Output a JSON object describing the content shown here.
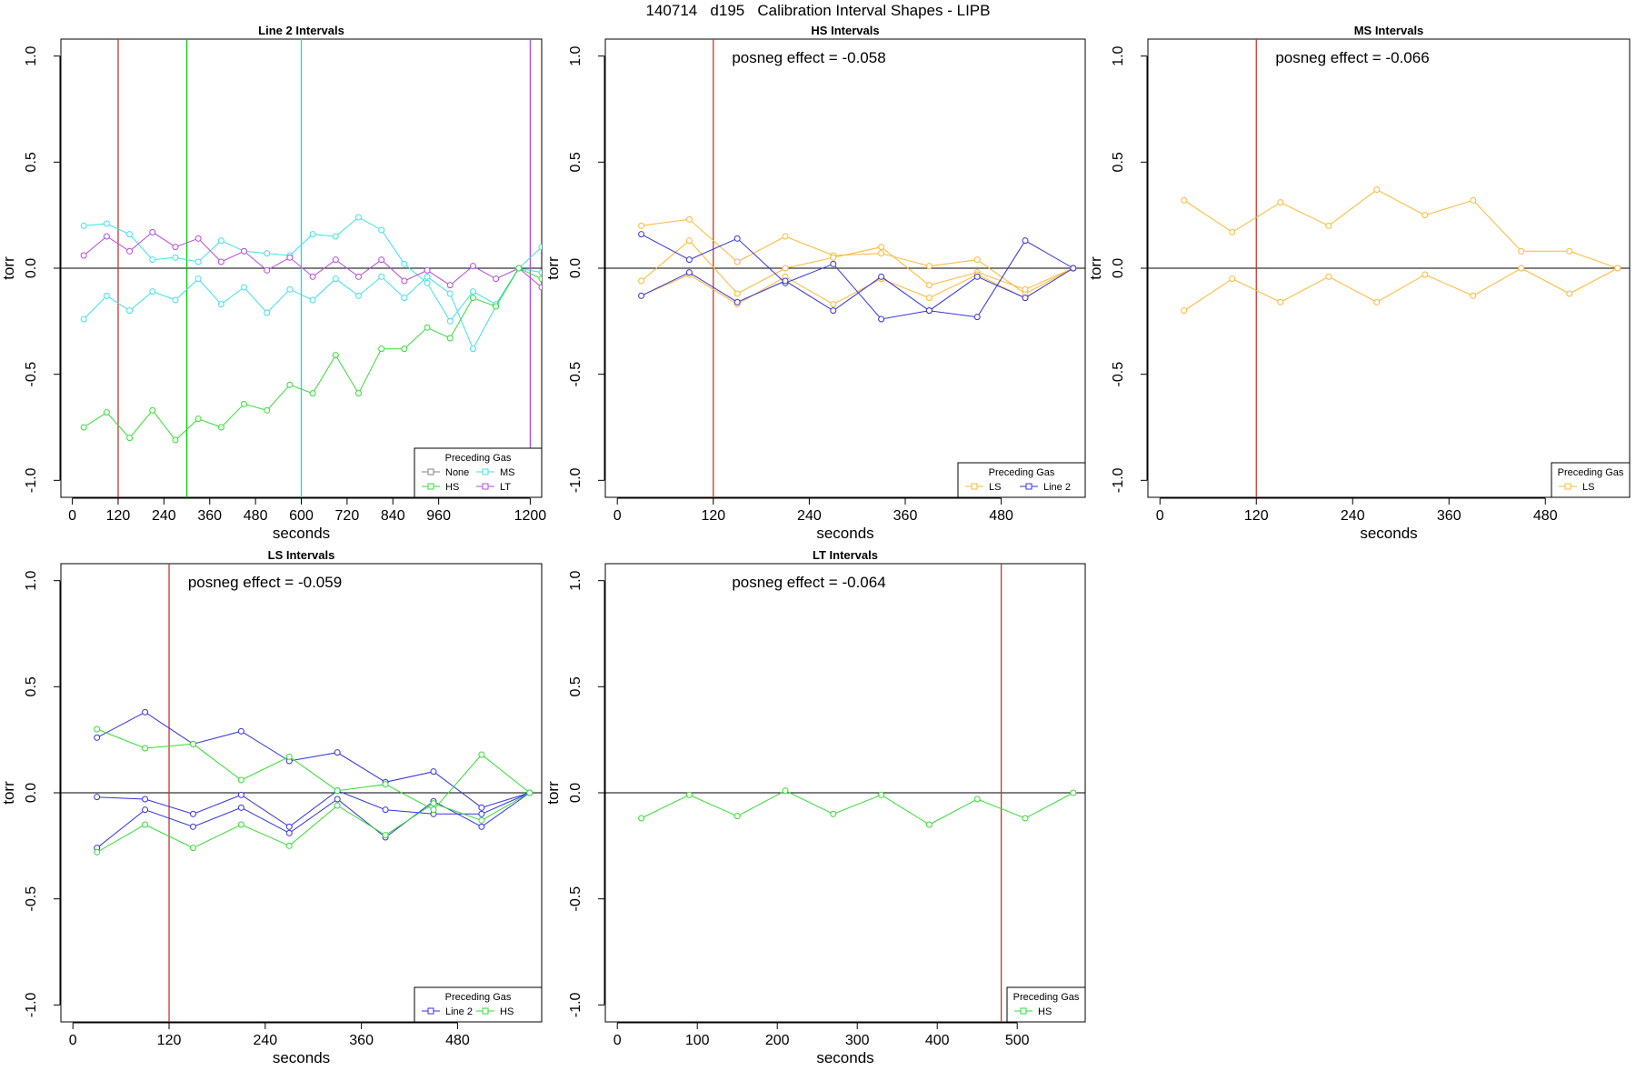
{
  "main_title": "140714   d195   Calibration Interval Shapes - LIPB",
  "chart_data": [
    {
      "type": "line",
      "title": "Line 2 Intervals",
      "annotation": "",
      "xlabel": "seconds",
      "ylabel": "torr",
      "xlim": [
        -30,
        1230
      ],
      "ylim": [
        -1.08,
        1.08
      ],
      "x_ticks": [
        0,
        120,
        240,
        360,
        480,
        600,
        720,
        840,
        960,
        1200
      ],
      "y_ticks": [
        -1.0,
        -0.5,
        0.0,
        0.5,
        1.0
      ],
      "vlines": [
        {
          "x": 120,
          "color": "#c0392b"
        },
        {
          "x": 300,
          "color": "#00cc00"
        },
        {
          "x": 600,
          "color": "#00e5e5"
        },
        {
          "x": 1200,
          "color": "#b44bdc"
        }
      ],
      "legend": {
        "title": "Preceding Gas",
        "position": "bottom-right",
        "columns": 2,
        "entries": [
          {
            "label": "None",
            "color": "#808080"
          },
          {
            "label": "MS",
            "color": "#40e0e8"
          },
          {
            "label": "HS",
            "color": "#33dd33"
          },
          {
            "label": "LT",
            "color": "#b44bdc"
          }
        ]
      },
      "series": [
        {
          "name": "MS",
          "color": "#40e0e8",
          "x": [
            30,
            90,
            150,
            210,
            270,
            330,
            390,
            450,
            510,
            570,
            630,
            690,
            750,
            810,
            870,
            930,
            990,
            1050,
            1110,
            1170,
            1230
          ],
          "y": [
            0.2,
            0.21,
            0.16,
            0.04,
            0.05,
            0.03,
            0.13,
            0.08,
            0.07,
            0.06,
            0.16,
            0.15,
            0.24,
            0.18,
            0.02,
            -0.07,
            -0.25,
            -0.11,
            -0.17,
            0.0,
            0.1
          ]
        },
        {
          "name": "MS",
          "color": "#40e0e8",
          "x": [
            30,
            90,
            150,
            210,
            270,
            330,
            390,
            450,
            510,
            570,
            630,
            690,
            750,
            810,
            870,
            930,
            990,
            1050,
            1110,
            1170,
            1230
          ],
          "y": [
            -0.24,
            -0.13,
            -0.2,
            -0.11,
            -0.15,
            -0.05,
            -0.17,
            -0.09,
            -0.21,
            -0.1,
            -0.15,
            -0.05,
            -0.13,
            -0.04,
            -0.14,
            -0.04,
            -0.12,
            -0.38,
            -0.18,
            0.0,
            -0.02
          ]
        },
        {
          "name": "LT",
          "color": "#b44bdc",
          "x": [
            30,
            90,
            150,
            210,
            270,
            330,
            390,
            450,
            510,
            570,
            630,
            690,
            750,
            810,
            870,
            930,
            990,
            1050,
            1110,
            1170,
            1230
          ],
          "y": [
            0.06,
            0.15,
            0.08,
            0.17,
            0.1,
            0.14,
            0.03,
            0.08,
            -0.01,
            0.05,
            -0.04,
            0.04,
            -0.04,
            0.04,
            -0.06,
            -0.01,
            -0.08,
            0.01,
            -0.05,
            0.0,
            -0.09
          ]
        },
        {
          "name": "HS",
          "color": "#33dd33",
          "x": [
            30,
            90,
            150,
            210,
            270,
            330,
            390,
            450,
            510,
            570,
            630,
            690,
            750,
            810,
            870,
            930,
            990,
            1050,
            1110,
            1170,
            1230
          ],
          "y": [
            -0.75,
            -0.68,
            -0.8,
            -0.67,
            -0.81,
            -0.71,
            -0.75,
            -0.64,
            -0.67,
            -0.55,
            -0.59,
            -0.41,
            -0.59,
            -0.38,
            -0.38,
            -0.28,
            -0.33,
            -0.14,
            -0.18,
            0.0,
            -0.05
          ]
        }
      ]
    },
    {
      "type": "line",
      "title": "HS Intervals",
      "annotation": "posneg effect = -0.058",
      "xlabel": "seconds",
      "ylabel": "torr",
      "xlim": [
        -15,
        585
      ],
      "ylim": [
        -1.08,
        1.08
      ],
      "x_ticks": [
        0,
        120,
        240,
        360,
        480
      ],
      "y_ticks": [
        -1.0,
        -0.5,
        0.0,
        0.5,
        1.0
      ],
      "vlines": [
        {
          "x": 120,
          "color": "#c0392b"
        }
      ],
      "legend": {
        "title": "Preceding Gas",
        "position": "bottom-right",
        "columns": 2,
        "entries": [
          {
            "label": "LS",
            "color": "#ffb733"
          },
          {
            "label": "Line 2",
            "color": "#3333dd"
          }
        ]
      },
      "series": [
        {
          "name": "LS",
          "color": "#ffb733",
          "x": [
            30,
            90,
            150,
            210,
            270,
            330,
            390,
            450,
            510,
            570
          ],
          "y": [
            0.2,
            0.23,
            0.03,
            0.15,
            0.06,
            0.07,
            0.01,
            0.04,
            -0.12,
            0.0
          ]
        },
        {
          "name": "LS",
          "color": "#ffb733",
          "x": [
            30,
            90,
            150,
            210,
            270,
            330,
            390,
            450,
            510,
            570
          ],
          "y": [
            -0.06,
            0.13,
            -0.12,
            0.0,
            0.05,
            0.1,
            -0.08,
            -0.02,
            -0.1,
            0.0
          ]
        },
        {
          "name": "LS",
          "color": "#ffb733",
          "x": [
            30,
            90,
            150,
            210,
            270,
            330,
            390,
            450,
            510,
            570
          ],
          "y": [
            -0.13,
            -0.03,
            -0.17,
            -0.04,
            -0.17,
            -0.05,
            -0.14,
            -0.03,
            -0.14,
            0.0
          ]
        },
        {
          "name": "Line 2",
          "color": "#3333dd",
          "x": [
            30,
            90,
            150,
            210,
            270,
            330,
            390,
            450,
            510,
            570
          ],
          "y": [
            0.16,
            0.04,
            0.14,
            -0.07,
            0.02,
            -0.24,
            -0.2,
            -0.23,
            0.13,
            0.0
          ]
        },
        {
          "name": "Line 2",
          "color": "#3333dd",
          "x": [
            30,
            90,
            150,
            210,
            270,
            330,
            390,
            450,
            510,
            570
          ],
          "y": [
            -0.13,
            -0.02,
            -0.16,
            -0.06,
            -0.2,
            -0.04,
            -0.2,
            -0.04,
            -0.14,
            0.0
          ]
        }
      ]
    },
    {
      "type": "line",
      "title": "MS Intervals",
      "annotation": "posneg effect = -0.066",
      "xlabel": "seconds",
      "ylabel": "torr",
      "xlim": [
        -15,
        585
      ],
      "ylim": [
        -1.08,
        1.08
      ],
      "x_ticks": [
        0,
        120,
        240,
        360,
        480
      ],
      "y_ticks": [
        -1.0,
        -0.5,
        0.0,
        0.5,
        1.0
      ],
      "vlines": [
        {
          "x": 120,
          "color": "#c0392b"
        }
      ],
      "legend": {
        "title": "Preceding Gas",
        "position": "bottom-right",
        "columns": 1,
        "entries": [
          {
            "label": "LS",
            "color": "#ffb733"
          }
        ]
      },
      "series": [
        {
          "name": "LS",
          "color": "#ffb733",
          "x": [
            30,
            90,
            150,
            210,
            270,
            330,
            390,
            450,
            510,
            570
          ],
          "y": [
            0.32,
            0.17,
            0.31,
            0.2,
            0.37,
            0.25,
            0.32,
            0.08,
            0.08,
            0.0
          ]
        },
        {
          "name": "LS",
          "color": "#ffb733",
          "x": [
            30,
            90,
            150,
            210,
            270,
            330,
            390,
            450,
            510,
            570
          ],
          "y": [
            -0.2,
            -0.05,
            -0.16,
            -0.04,
            -0.16,
            -0.03,
            -0.13,
            0.0,
            -0.12,
            0.0
          ]
        }
      ]
    },
    {
      "type": "line",
      "title": "LS Intervals",
      "annotation": "posneg effect = -0.059",
      "xlabel": "seconds",
      "ylabel": "torr",
      "xlim": [
        -15,
        585
      ],
      "ylim": [
        -1.08,
        1.08
      ],
      "x_ticks": [
        0,
        120,
        240,
        360,
        480
      ],
      "y_ticks": [
        -1.0,
        -0.5,
        0.0,
        0.5,
        1.0
      ],
      "vlines": [
        {
          "x": 120,
          "color": "#c0392b"
        }
      ],
      "legend": {
        "title": "Preceding Gas",
        "position": "bottom-right",
        "columns": 2,
        "entries": [
          {
            "label": "Line 2",
            "color": "#3333dd"
          },
          {
            "label": "HS",
            "color": "#33dd33"
          }
        ]
      },
      "series": [
        {
          "name": "Line 2",
          "color": "#3333dd",
          "x": [
            30,
            90,
            150,
            210,
            270,
            330,
            390,
            450,
            510,
            570
          ],
          "y": [
            0.26,
            0.38,
            0.23,
            0.29,
            0.15,
            0.19,
            0.05,
            0.1,
            -0.07,
            0.0
          ]
        },
        {
          "name": "Line 2",
          "color": "#3333dd",
          "x": [
            30,
            90,
            150,
            210,
            270,
            330,
            390,
            450,
            510,
            570
          ],
          "y": [
            -0.02,
            -0.03,
            -0.1,
            -0.01,
            -0.16,
            0.01,
            -0.08,
            -0.1,
            -0.1,
            0.0
          ]
        },
        {
          "name": "Line 2",
          "color": "#3333dd",
          "x": [
            30,
            90,
            150,
            210,
            270,
            330,
            390,
            450,
            510,
            570
          ],
          "y": [
            -0.26,
            -0.08,
            -0.16,
            -0.07,
            -0.19,
            -0.03,
            -0.21,
            -0.04,
            -0.16,
            0.0
          ]
        },
        {
          "name": "HS",
          "color": "#33dd33",
          "x": [
            30,
            90,
            150,
            210,
            270,
            330,
            390,
            450,
            510,
            570
          ],
          "y": [
            0.3,
            0.21,
            0.23,
            0.06,
            0.17,
            0.01,
            0.04,
            -0.08,
            0.18,
            0.0
          ]
        },
        {
          "name": "HS",
          "color": "#33dd33",
          "x": [
            30,
            90,
            150,
            210,
            270,
            330,
            390,
            450,
            510,
            570
          ],
          "y": [
            -0.28,
            -0.15,
            -0.26,
            -0.15,
            -0.25,
            -0.06,
            -0.2,
            -0.05,
            -0.13,
            0.0
          ]
        }
      ]
    },
    {
      "type": "line",
      "title": "LT Intervals",
      "annotation": "posneg effect = -0.064",
      "xlabel": "seconds",
      "ylabel": "torr",
      "xlim": [
        -15,
        585
      ],
      "ylim": [
        -1.08,
        1.08
      ],
      "x_ticks": [
        0,
        100,
        200,
        300,
        400,
        500
      ],
      "y_ticks": [
        -1.0,
        -0.5,
        0.0,
        0.5,
        1.0
      ],
      "vlines": [
        {
          "x": 480,
          "color": "#c0392b"
        }
      ],
      "legend": {
        "title": "Preceding Gas",
        "position": "bottom-right",
        "columns": 1,
        "entries": [
          {
            "label": "HS",
            "color": "#33dd33"
          }
        ]
      },
      "series": [
        {
          "name": "HS",
          "color": "#33dd33",
          "x": [
            30,
            90,
            150,
            210,
            270,
            330,
            390,
            450,
            510,
            570
          ],
          "y": [
            -0.12,
            -0.01,
            -0.11,
            0.01,
            -0.1,
            -0.01,
            -0.15,
            -0.03,
            -0.12,
            0.0
          ]
        }
      ]
    }
  ]
}
